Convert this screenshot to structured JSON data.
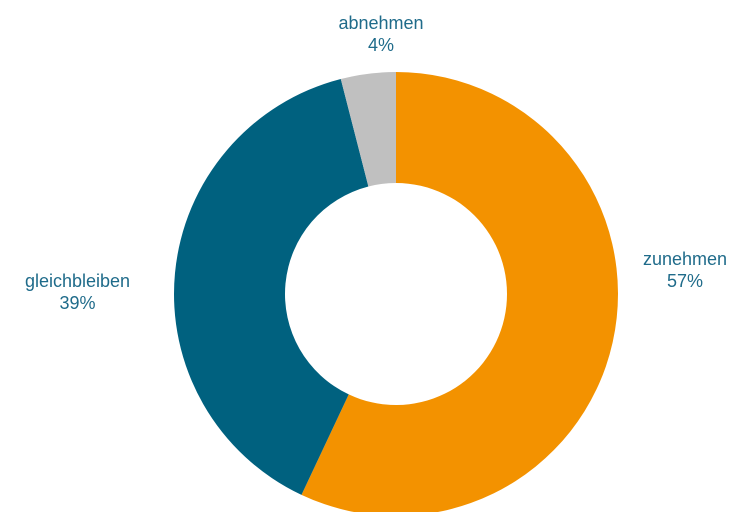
{
  "chart_data": {
    "type": "pie",
    "donut": true,
    "title": "",
    "legend": "none",
    "start": "top, clockwise",
    "slices": [
      {
        "label": "zunehmen",
        "value": 57,
        "value_label": "57%",
        "color": "#f39200"
      },
      {
        "label": "gleichbleiben",
        "value": 39,
        "value_label": "39%",
        "color": "#00617f"
      },
      {
        "label": "abnehmen",
        "value": 4,
        "value_label": "4%",
        "color": "#c0c0c0"
      }
    ]
  }
}
